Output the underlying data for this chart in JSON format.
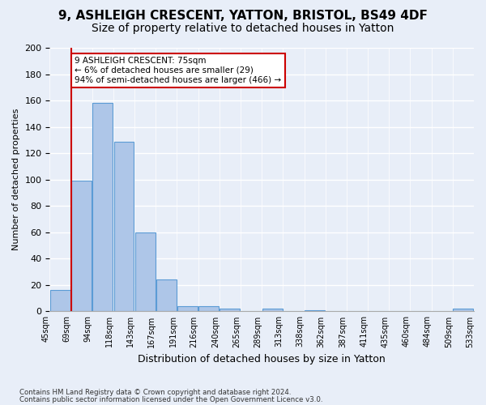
{
  "title1": "9, ASHLEIGH CRESCENT, YATTON, BRISTOL, BS49 4DF",
  "title2": "Size of property relative to detached houses in Yatton",
  "xlabel": "Distribution of detached houses by size in Yatton",
  "ylabel": "Number of detached properties",
  "bin_labels": [
    "45sqm",
    "69sqm",
    "94sqm",
    "118sqm",
    "143sqm",
    "167sqm",
    "191sqm",
    "216sqm",
    "240sqm",
    "265sqm",
    "289sqm",
    "313sqm",
    "338sqm",
    "362sqm",
    "387sqm",
    "411sqm",
    "435sqm",
    "460sqm",
    "484sqm",
    "509sqm",
    "533sqm"
  ],
  "values": [
    16,
    99,
    158,
    129,
    60,
    24,
    4,
    4,
    2,
    0,
    2,
    0,
    1,
    0,
    0,
    0,
    0,
    0,
    0,
    2
  ],
  "bar_color": "#aec6e8",
  "bar_edge_color": "#5b9bd5",
  "vline_x_index": 0.53,
  "annotation_text": "9 ASHLEIGH CRESCENT: 75sqm\n← 6% of detached houses are smaller (29)\n94% of semi-detached houses are larger (466) →",
  "annotation_box_color": "#ffffff",
  "annotation_box_edge": "#cc0000",
  "vline_color": "#cc0000",
  "ylim": [
    0,
    200
  ],
  "yticks": [
    0,
    20,
    40,
    60,
    80,
    100,
    120,
    140,
    160,
    180,
    200
  ],
  "footer1": "Contains HM Land Registry data © Crown copyright and database right 2024.",
  "footer2": "Contains public sector information licensed under the Open Government Licence v3.0.",
  "background_color": "#e8eef8",
  "grid_color": "#ffffff",
  "title1_fontsize": 11,
  "title2_fontsize": 10
}
